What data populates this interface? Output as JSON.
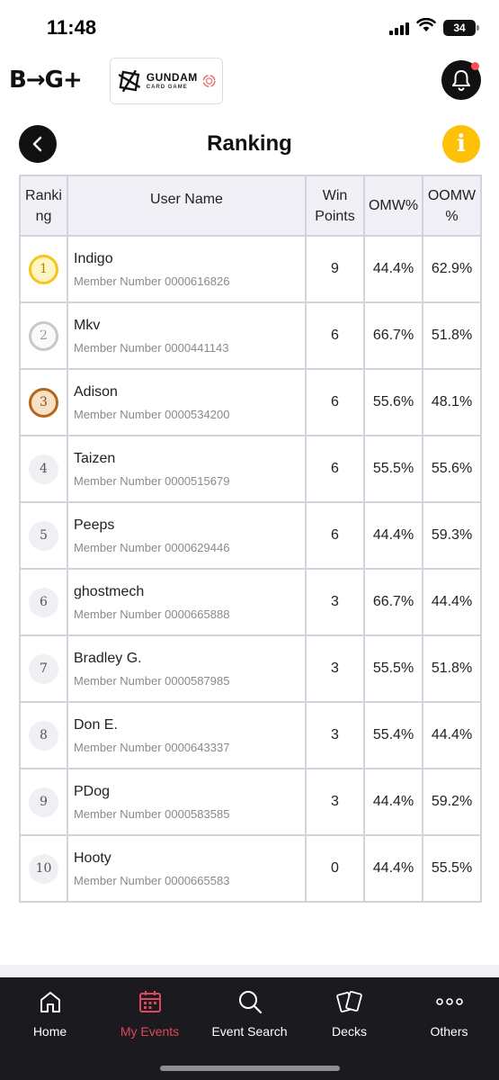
{
  "status_bar": {
    "time": "11:48",
    "battery": "34"
  },
  "header": {
    "brand_logo": "B→G+",
    "partner_logo_title": "GUNDAM",
    "partner_logo_subtitle": "CARD GAME",
    "notification_dot_color": "#ff4d5a"
  },
  "page": {
    "title": "Ranking",
    "info_symbol": "i"
  },
  "table": {
    "headers": {
      "rank": "Ranki ng",
      "user": "User Name",
      "points": "Win Points",
      "omw": "OMW%",
      "oomw": "OOMW %"
    },
    "rows": [
      {
        "rank": "1",
        "name": "Indigo",
        "member": "Member Number 0000616826",
        "points": "9",
        "omw": "44.4%",
        "oomw": "62.9%"
      },
      {
        "rank": "2",
        "name": "Mkv",
        "member": "Member Number 0000441143",
        "points": "6",
        "omw": "66.7%",
        "oomw": "51.8%"
      },
      {
        "rank": "3",
        "name": "Adison",
        "member": "Member Number 0000534200",
        "points": "6",
        "omw": "55.6%",
        "oomw": "48.1%"
      },
      {
        "rank": "4",
        "name": "Taizen",
        "member": "Member Number 0000515679",
        "points": "6",
        "omw": "55.5%",
        "oomw": "55.6%"
      },
      {
        "rank": "5",
        "name": "Peeps",
        "member": "Member Number 0000629446",
        "points": "6",
        "omw": "44.4%",
        "oomw": "59.3%"
      },
      {
        "rank": "6",
        "name": "ghostmech",
        "member": "Member Number 0000665888",
        "points": "3",
        "omw": "66.7%",
        "oomw": "44.4%"
      },
      {
        "rank": "7",
        "name": "Bradley G.",
        "member": "Member Number 0000587985",
        "points": "3",
        "omw": "55.5%",
        "oomw": "51.8%"
      },
      {
        "rank": "8",
        "name": "Don E.",
        "member": "Member Number 0000643337",
        "points": "3",
        "omw": "55.4%",
        "oomw": "44.4%"
      },
      {
        "rank": "9",
        "name": "PDog",
        "member": "Member Number 0000583585",
        "points": "3",
        "omw": "44.4%",
        "oomw": "59.2%"
      },
      {
        "rank": "10",
        "name": "Hooty",
        "member": "Member Number 0000665583",
        "points": "0",
        "omw": "44.4%",
        "oomw": "55.5%"
      }
    ]
  },
  "tabs": [
    {
      "label": "Home",
      "icon": "home-icon",
      "active": false
    },
    {
      "label": "My Events",
      "icon": "calendar-icon",
      "active": true
    },
    {
      "label": "Event Search",
      "icon": "search-icon",
      "active": false
    },
    {
      "label": "Decks",
      "icon": "cards-icon",
      "active": false
    },
    {
      "label": "Others",
      "icon": "more-icon",
      "active": false
    }
  ],
  "colors": {
    "accent": "#e0475a",
    "info": "#ffc107",
    "tab_bar": "#1b1b1f"
  }
}
